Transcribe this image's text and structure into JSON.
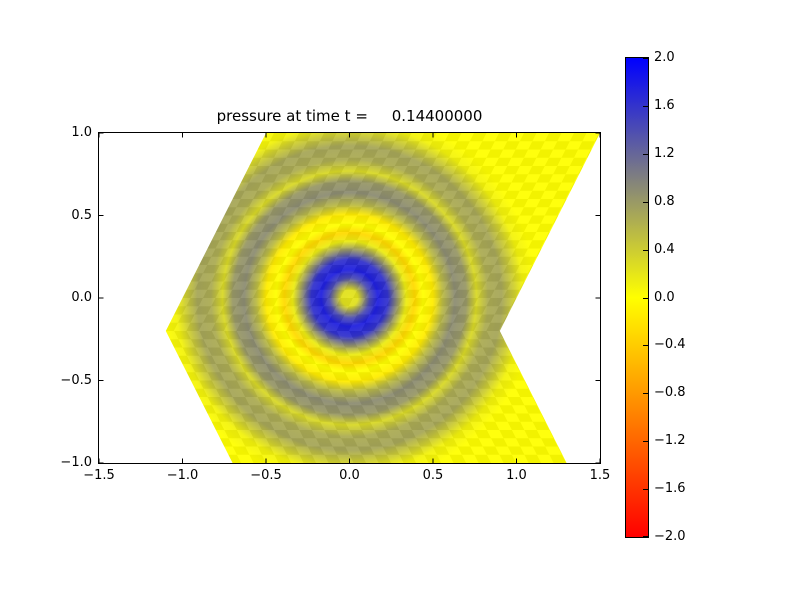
{
  "window": {
    "background": "#ffffff"
  },
  "title": "pressure at time t =     0.14400000",
  "chart_data": {
    "type": "heatmap",
    "title": "pressure at time t =     0.14400000",
    "xlabel": "",
    "ylabel": "",
    "grid": false,
    "xlim": [
      -1.5,
      1.5
    ],
    "ylim": [
      -1.0,
      1.0
    ],
    "xtick_values": [
      -1.5,
      -1.0,
      -0.5,
      0.0,
      0.5,
      1.0,
      1.5
    ],
    "xtick_labels": [
      "−1.5",
      "−1.0",
      "−0.5",
      "0.0",
      "0.5",
      "1.0",
      "1.5"
    ],
    "ytick_values": [
      1.0,
      0.5,
      0.0,
      -0.5,
      -1.0
    ],
    "ytick_labels": [
      "1.0",
      "0.5",
      "0.0",
      "−0.5",
      "−1.0"
    ],
    "colormap": {
      "vmin": -2.0,
      "vmax": 2.0,
      "stops": [
        {
          "value": -2.0,
          "color": "#ff0000"
        },
        {
          "value": 0.0,
          "color": "#ffff00"
        },
        {
          "value": 2.0,
          "color": "#0000ff"
        }
      ]
    },
    "colorbar": {
      "position": "right",
      "tick_values": [
        2.0,
        1.6,
        1.2,
        0.8,
        0.4,
        0.0,
        -0.4,
        -0.8,
        -1.2,
        -1.6,
        -2.0
      ],
      "tick_labels": [
        "2.0",
        "1.6",
        "1.2",
        "0.8",
        "0.4",
        "0.0",
        "−0.4",
        "−0.8",
        "−1.2",
        "−1.6",
        "−2.0"
      ]
    },
    "domain_polygon": [
      [
        -0.5,
        1.0
      ],
      [
        1.5,
        1.0
      ],
      [
        0.9,
        -0.2
      ],
      [
        1.3,
        -1.0
      ],
      [
        -0.7,
        -1.0
      ],
      [
        -1.1,
        -0.2
      ]
    ],
    "shear_kink_y": -0.2,
    "wave_center": [
      0.0,
      0.0
    ],
    "radial_profile": [
      {
        "r": 0.0,
        "p": 0.2
      },
      {
        "r": 0.05,
        "p": 0.25
      },
      {
        "r": 0.12,
        "p": 1.4
      },
      {
        "r": 0.17,
        "p": 1.75
      },
      {
        "r": 0.23,
        "p": 1.6
      },
      {
        "r": 0.29,
        "p": 0.8
      },
      {
        "r": 0.34,
        "p": 0.15
      },
      {
        "r": 0.39,
        "p": -0.3
      },
      {
        "r": 0.44,
        "p": 0.0
      },
      {
        "r": 0.5,
        "p": -0.15
      },
      {
        "r": 0.56,
        "p": 0.55
      },
      {
        "r": 0.63,
        "p": 0.9
      },
      {
        "r": 0.7,
        "p": 0.8
      },
      {
        "r": 0.76,
        "p": 0.3
      },
      {
        "r": 0.83,
        "p": 0.65
      },
      {
        "r": 0.91,
        "p": 0.7
      },
      {
        "r": 0.98,
        "p": 0.4
      },
      {
        "r": 1.04,
        "p": 0.1
      },
      {
        "r": 1.12,
        "p": 0.0
      }
    ]
  }
}
